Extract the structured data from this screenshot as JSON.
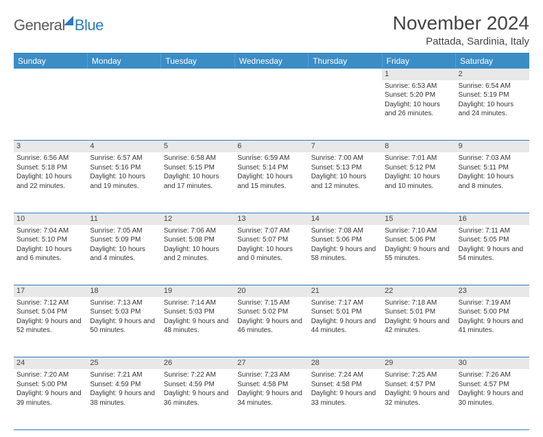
{
  "brand": {
    "name1": "General",
    "name2": "Blue"
  },
  "title": "November 2024",
  "location": "Pattada, Sardinia, Italy",
  "colors": {
    "header_bg": "#3b8dc6",
    "rule": "#2b7bbf",
    "daynum_bg": "#e8e8e8",
    "text": "#333333"
  },
  "weekdays": [
    "Sunday",
    "Monday",
    "Tuesday",
    "Wednesday",
    "Thursday",
    "Friday",
    "Saturday"
  ],
  "weeks": [
    [
      null,
      null,
      null,
      null,
      null,
      {
        "n": "1",
        "sunrise": "6:53 AM",
        "sunset": "5:20 PM",
        "daylight": "10 hours and 26 minutes."
      },
      {
        "n": "2",
        "sunrise": "6:54 AM",
        "sunset": "5:19 PM",
        "daylight": "10 hours and 24 minutes."
      }
    ],
    [
      {
        "n": "3",
        "sunrise": "6:56 AM",
        "sunset": "5:18 PM",
        "daylight": "10 hours and 22 minutes."
      },
      {
        "n": "4",
        "sunrise": "6:57 AM",
        "sunset": "5:16 PM",
        "daylight": "10 hours and 19 minutes."
      },
      {
        "n": "5",
        "sunrise": "6:58 AM",
        "sunset": "5:15 PM",
        "daylight": "10 hours and 17 minutes."
      },
      {
        "n": "6",
        "sunrise": "6:59 AM",
        "sunset": "5:14 PM",
        "daylight": "10 hours and 15 minutes."
      },
      {
        "n": "7",
        "sunrise": "7:00 AM",
        "sunset": "5:13 PM",
        "daylight": "10 hours and 12 minutes."
      },
      {
        "n": "8",
        "sunrise": "7:01 AM",
        "sunset": "5:12 PM",
        "daylight": "10 hours and 10 minutes."
      },
      {
        "n": "9",
        "sunrise": "7:03 AM",
        "sunset": "5:11 PM",
        "daylight": "10 hours and 8 minutes."
      }
    ],
    [
      {
        "n": "10",
        "sunrise": "7:04 AM",
        "sunset": "5:10 PM",
        "daylight": "10 hours and 6 minutes."
      },
      {
        "n": "11",
        "sunrise": "7:05 AM",
        "sunset": "5:09 PM",
        "daylight": "10 hours and 4 minutes."
      },
      {
        "n": "12",
        "sunrise": "7:06 AM",
        "sunset": "5:08 PM",
        "daylight": "10 hours and 2 minutes."
      },
      {
        "n": "13",
        "sunrise": "7:07 AM",
        "sunset": "5:07 PM",
        "daylight": "10 hours and 0 minutes."
      },
      {
        "n": "14",
        "sunrise": "7:08 AM",
        "sunset": "5:06 PM",
        "daylight": "9 hours and 58 minutes."
      },
      {
        "n": "15",
        "sunrise": "7:10 AM",
        "sunset": "5:06 PM",
        "daylight": "9 hours and 55 minutes."
      },
      {
        "n": "16",
        "sunrise": "7:11 AM",
        "sunset": "5:05 PM",
        "daylight": "9 hours and 54 minutes."
      }
    ],
    [
      {
        "n": "17",
        "sunrise": "7:12 AM",
        "sunset": "5:04 PM",
        "daylight": "9 hours and 52 minutes."
      },
      {
        "n": "18",
        "sunrise": "7:13 AM",
        "sunset": "5:03 PM",
        "daylight": "9 hours and 50 minutes."
      },
      {
        "n": "19",
        "sunrise": "7:14 AM",
        "sunset": "5:03 PM",
        "daylight": "9 hours and 48 minutes."
      },
      {
        "n": "20",
        "sunrise": "7:15 AM",
        "sunset": "5:02 PM",
        "daylight": "9 hours and 46 minutes."
      },
      {
        "n": "21",
        "sunrise": "7:17 AM",
        "sunset": "5:01 PM",
        "daylight": "9 hours and 44 minutes."
      },
      {
        "n": "22",
        "sunrise": "7:18 AM",
        "sunset": "5:01 PM",
        "daylight": "9 hours and 42 minutes."
      },
      {
        "n": "23",
        "sunrise": "7:19 AM",
        "sunset": "5:00 PM",
        "daylight": "9 hours and 41 minutes."
      }
    ],
    [
      {
        "n": "24",
        "sunrise": "7:20 AM",
        "sunset": "5:00 PM",
        "daylight": "9 hours and 39 minutes."
      },
      {
        "n": "25",
        "sunrise": "7:21 AM",
        "sunset": "4:59 PM",
        "daylight": "9 hours and 38 minutes."
      },
      {
        "n": "26",
        "sunrise": "7:22 AM",
        "sunset": "4:59 PM",
        "daylight": "9 hours and 36 minutes."
      },
      {
        "n": "27",
        "sunrise": "7:23 AM",
        "sunset": "4:58 PM",
        "daylight": "9 hours and 34 minutes."
      },
      {
        "n": "28",
        "sunrise": "7:24 AM",
        "sunset": "4:58 PM",
        "daylight": "9 hours and 33 minutes."
      },
      {
        "n": "29",
        "sunrise": "7:25 AM",
        "sunset": "4:57 PM",
        "daylight": "9 hours and 32 minutes."
      },
      {
        "n": "30",
        "sunrise": "7:26 AM",
        "sunset": "4:57 PM",
        "daylight": "9 hours and 30 minutes."
      }
    ]
  ],
  "labels": {
    "sunrise": "Sunrise:",
    "sunset": "Sunset:",
    "daylight": "Daylight:"
  }
}
